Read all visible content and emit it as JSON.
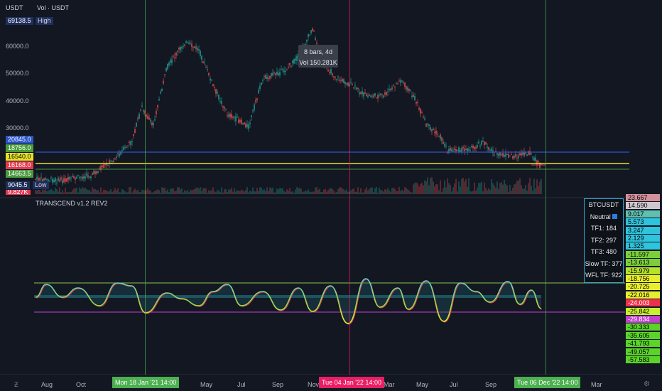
{
  "header": {
    "price_label": "USDT",
    "volume_label": "Vol · USDT",
    "high_value": "69138.5",
    "high_label": "High",
    "low_value": "9045.5",
    "low_label": "Low",
    "partial_tag": "9.827K"
  },
  "price_axis": [
    "60000.0",
    "50000.0",
    "40000.0",
    "30000.0"
  ],
  "level_tags": [
    {
      "value": "20845.0",
      "color": "#2a55c6"
    },
    {
      "value": "18756.0",
      "color": "#4a9a3e"
    },
    {
      "value": "16540.0",
      "color": "#e6e22a"
    },
    {
      "value": "16168.0",
      "color": "#e53950"
    },
    {
      "value": "14663.5",
      "color": "#4a9a3e"
    }
  ],
  "tooltip": {
    "line1": "8 bars, 4d",
    "line2": "Vol 150.281K"
  },
  "indicator": {
    "title": "TRANSCEND v1.2 REV2"
  },
  "info_table": {
    "symbol": "BTCUSDT",
    "status": "Neutral",
    "rows": [
      "TF1: 184",
      "TF2: 297",
      "TF3: 480",
      "Slow TF: 377",
      "WFL TF: 922"
    ]
  },
  "right_tags": [
    {
      "value": "23.667",
      "color": "#d4919b"
    },
    {
      "value": "14.590",
      "color": "#cfc8d0"
    },
    {
      "value": "9.017",
      "color": "#5fbfb0"
    },
    {
      "value": "5.573",
      "color": "#2fc4de"
    },
    {
      "value": "3.247",
      "color": "#2fc4de"
    },
    {
      "value": "2.129",
      "color": "#2fc4de"
    },
    {
      "value": "1.325",
      "color": "#2fc4de"
    },
    {
      "value": "-11.597",
      "color": "#7bd03a"
    },
    {
      "value": "-13.613",
      "color": "#7bd03a"
    },
    {
      "value": "-15.979",
      "color": "#b5e22a"
    },
    {
      "value": "-18.756",
      "color": "#e8ee2e"
    },
    {
      "value": "-20.725",
      "color": "#e8ee2e"
    },
    {
      "value": "-22.016",
      "color": "#e8ee2e"
    },
    {
      "value": "-24.003",
      "color": "#f0304a"
    },
    {
      "value": "-25.842",
      "color": "#c7f02e"
    },
    {
      "value": "-29.834",
      "color": "#c040d0"
    },
    {
      "value": "-30.333",
      "color": "#5bd42a"
    },
    {
      "value": "-35.605",
      "color": "#5bd42a"
    },
    {
      "value": "-41.793",
      "color": "#5bd42a"
    },
    {
      "value": "-49.057",
      "color": "#5bd42a"
    },
    {
      "value": "-57.583",
      "color": "#5bd42a"
    }
  ],
  "time_axis": [
    "Aug",
    "Oct",
    "May",
    "Jul",
    "Sep",
    "Nov",
    "Mar",
    "May",
    "Jul",
    "Sep",
    "Mar"
  ],
  "time_badges": [
    {
      "label": "Mon 18 Jan '21   14:00",
      "color": "#4caf50"
    },
    {
      "label": "Tue 04 Jan '22   14:00",
      "color": "#e91e63"
    },
    {
      "label": "Tue 06 Dec '22   14:00",
      "color": "#4caf50"
    }
  ],
  "colors": {
    "background": "#131722",
    "up": "#26a69a",
    "down": "#ef5350"
  }
}
